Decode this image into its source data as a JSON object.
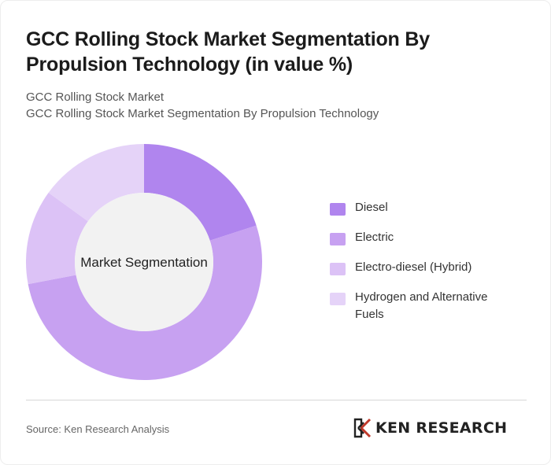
{
  "title": "GCC Rolling Stock Market Segmentation By Propulsion Technology (in value %)",
  "subtitle_1": "GCC Rolling Stock Market",
  "subtitle_2": "GCC Rolling Stock Market Segmentation By Propulsion Technology",
  "source": "Source: Ken Research Analysis",
  "logo_text": "KEN RESEARCH",
  "colors": {
    "background": "#ffffff",
    "center": "#f2f2f2",
    "divider": "#d8d8d8"
  },
  "chart_data": {
    "type": "pie",
    "donut": true,
    "center_label": "Market Segmentation",
    "legend_position": "right",
    "categories": [
      "Diesel",
      "Electric",
      "Electro-diesel (Hybrid)",
      "Hydrogen and Alternative Fuels"
    ],
    "values": [
      20,
      52,
      13,
      15
    ],
    "colors": [
      "#b085ee",
      "#c7a1f1",
      "#dcc2f6",
      "#e5d3f8"
    ]
  }
}
